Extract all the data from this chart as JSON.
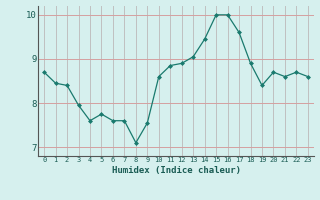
{
  "x": [
    0,
    1,
    2,
    3,
    4,
    5,
    6,
    7,
    8,
    9,
    10,
    11,
    12,
    13,
    14,
    15,
    16,
    17,
    18,
    19,
    20,
    21,
    22,
    23
  ],
  "y": [
    8.7,
    8.45,
    8.4,
    7.95,
    7.6,
    7.75,
    7.6,
    7.6,
    7.1,
    7.55,
    8.6,
    8.85,
    8.9,
    9.05,
    9.45,
    10.0,
    10.0,
    9.6,
    8.9,
    8.4,
    8.7,
    8.6,
    8.7,
    8.6
  ],
  "xlabel": "Humidex (Indice chaleur)",
  "ylim": [
    6.8,
    10.2
  ],
  "xlim": [
    -0.5,
    23.5
  ],
  "yticks": [
    7,
    8,
    9,
    10
  ],
  "xticks": [
    0,
    1,
    2,
    3,
    4,
    5,
    6,
    7,
    8,
    9,
    10,
    11,
    12,
    13,
    14,
    15,
    16,
    17,
    18,
    19,
    20,
    21,
    22,
    23
  ],
  "line_color": "#1a7a6e",
  "marker_color": "#1a7a6e",
  "bg_color": "#d6f0ee",
  "grid_color": "#c0c0c0",
  "tick_label_color": "#1a5c54",
  "xlabel_color": "#1a5c54"
}
